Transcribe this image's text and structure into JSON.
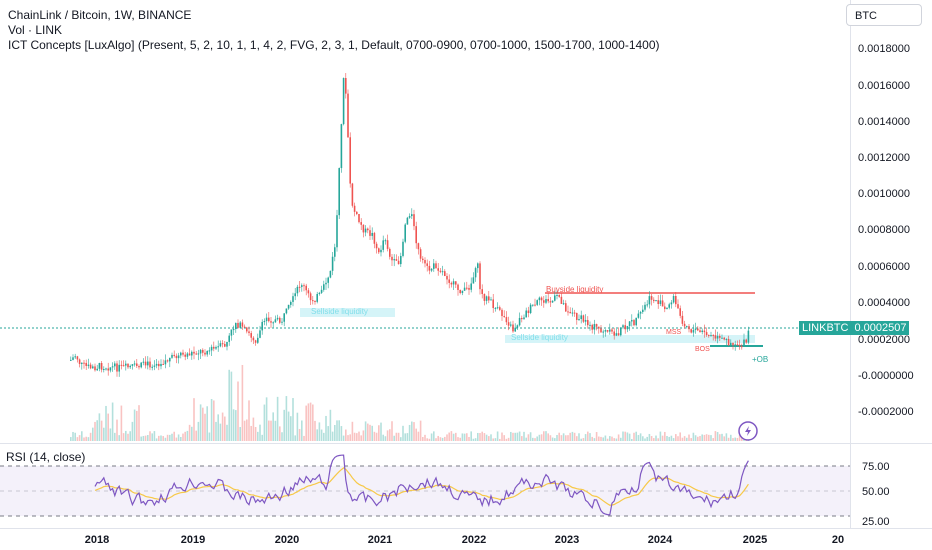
{
  "header": {
    "title": "ChainLink / Bitcoin, 1W, BINANCE",
    "volume": "Vol · LINK",
    "indicator": "ICT Concepts [LuxAlgo] (Present, 5, 2, 10, 1, 1, 4, 2, FVG, 2, 3, 1, Default, 0700-0900, 0700-1000, 1500-1700, 1000-1400)"
  },
  "scale_currency": "BTC",
  "price_axis": [
    "0.0018000",
    "0.0016000",
    "0.0014000",
    "0.0012000",
    "0.0010000",
    "0.0008000",
    "0.0006000",
    "0.0004000",
    "0.0002000",
    "-0.0000000",
    "-0.0002000"
  ],
  "last_price": {
    "symbol": "LINKBTC",
    "value": "0.0002507"
  },
  "annotations": {
    "buyside": "Buyside liquidity",
    "sellside_1": "Sellside liquidity",
    "sellside_2": "Sellside liquidity",
    "mss": "MSS",
    "bos": "BOS",
    "ob": "+OB"
  },
  "rsi": {
    "label": "RSI (14, close)",
    "axis": [
      "75.00",
      "50.00",
      "25.00"
    ]
  },
  "time_axis": [
    "2018",
    "2019",
    "2020",
    "2021",
    "2022",
    "2023",
    "2024",
    "2025",
    "20"
  ],
  "icon": "lightning-icon",
  "colors": {
    "up": "#26a69a",
    "down": "#ef5350",
    "rsi_line": "#7e57c2",
    "rsi_ma": "#f7c948",
    "buyside": "#ef5350",
    "sellside": "#80deea"
  }
}
